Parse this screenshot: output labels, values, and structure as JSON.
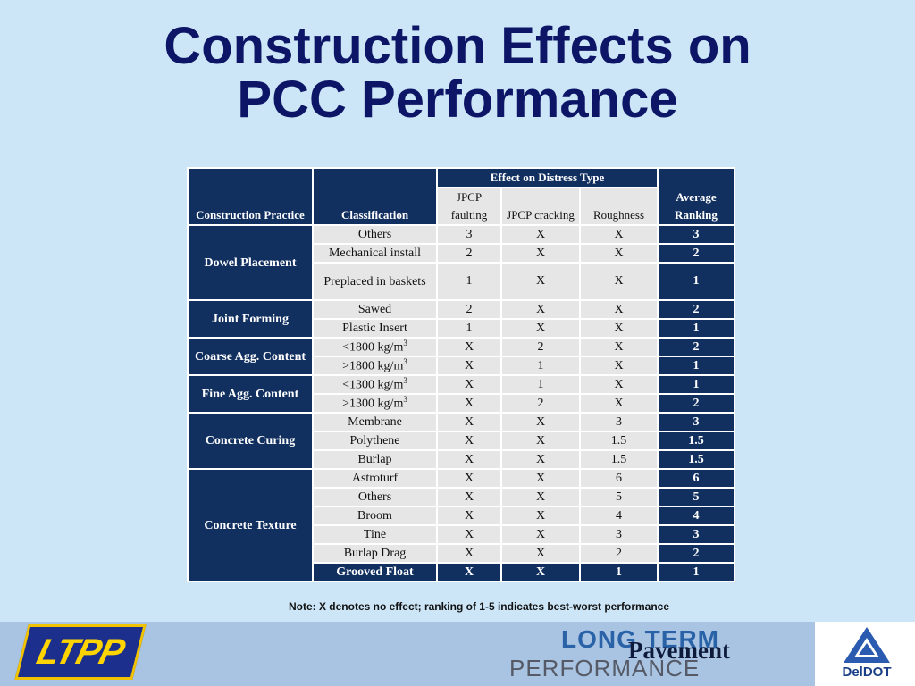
{
  "title": {
    "line1": "Construction Effects on",
    "line2": "PCC Performance"
  },
  "table": {
    "headers": {
      "practice": "Construction Practice",
      "classification": "Classification",
      "effect_group": "Effect on Distress Type",
      "faulting": "JPCP faulting",
      "cracking": "JPCP cracking",
      "roughness": "Roughness",
      "ranking": "Average Ranking"
    },
    "rows": [
      {
        "practice": "Dowel Placement",
        "span": 3,
        "classification": "Others",
        "faulting": "3",
        "cracking": "X",
        "roughness": "X",
        "ranking": "3"
      },
      {
        "classification": "Mechanical install",
        "faulting": "2",
        "cracking": "X",
        "roughness": "X",
        "ranking": "2"
      },
      {
        "classification": "Preplaced in baskets",
        "faulting": "1",
        "cracking": "X",
        "roughness": "X",
        "ranking": "1",
        "tall": true
      },
      {
        "practice": "Joint Forming",
        "span": 2,
        "classification": "Sawed",
        "faulting": "2",
        "cracking": "X",
        "roughness": "X",
        "ranking": "2"
      },
      {
        "classification": "Plastic Insert",
        "faulting": "1",
        "cracking": "X",
        "roughness": "X",
        "ranking": "1"
      },
      {
        "practice": "Coarse Agg. Content",
        "span": 2,
        "classification": "<1800 kg/m",
        "sup": "3",
        "faulting": "X",
        "cracking": "2",
        "roughness": "X",
        "ranking": "2"
      },
      {
        "classification": ">1800 kg/m",
        "sup": "3",
        "faulting": "X",
        "cracking": "1",
        "roughness": "X",
        "ranking": "1"
      },
      {
        "practice": "Fine Agg. Content",
        "span": 2,
        "classification": "<1300 kg/m",
        "sup": "3",
        "faulting": "X",
        "cracking": "1",
        "roughness": "X",
        "ranking": "1"
      },
      {
        "classification": ">1300 kg/m",
        "sup": "3",
        "faulting": "X",
        "cracking": "2",
        "roughness": "X",
        "ranking": "2"
      },
      {
        "practice": "Concrete Curing",
        "span": 3,
        "classification": "Membrane",
        "faulting": "X",
        "cracking": "X",
        "roughness": "3",
        "ranking": "3"
      },
      {
        "classification": "Polythene",
        "faulting": "X",
        "cracking": "X",
        "roughness": "1.5",
        "ranking": "1.5"
      },
      {
        "classification": "Burlap",
        "faulting": "X",
        "cracking": "X",
        "roughness": "1.5",
        "ranking": "1.5"
      },
      {
        "practice": "Concrete Texture",
        "span": 6,
        "classification": "Astroturf",
        "faulting": "X",
        "cracking": "X",
        "roughness": "6",
        "ranking": "6"
      },
      {
        "classification": "Others",
        "faulting": "X",
        "cracking": "X",
        "roughness": "5",
        "ranking": "5"
      },
      {
        "classification": "Broom",
        "faulting": "X",
        "cracking": "X",
        "roughness": "4",
        "ranking": "4"
      },
      {
        "classification": "Tine",
        "faulting": "X",
        "cracking": "X",
        "roughness": "3",
        "ranking": "3"
      },
      {
        "classification": "Burlap Drag",
        "faulting": "X",
        "cracking": "X",
        "roughness": "2",
        "ranking": "2"
      },
      {
        "classification": "Grooved Float",
        "faulting": "X",
        "cracking": "X",
        "roughness": "1",
        "ranking": "1",
        "highlight": true
      }
    ]
  },
  "note": "Note: X denotes no effect; ranking of 1-5 indicates best-worst performance",
  "footer": {
    "ltpp_logo": "LTPP",
    "ltp_line1": "LONG TERM",
    "ltp_line2": "Pavement",
    "ltp_line3": "PERFORMANCE",
    "deldot": "DelDOT"
  }
}
